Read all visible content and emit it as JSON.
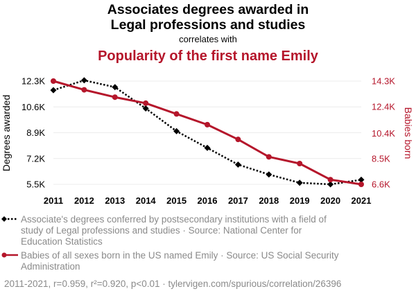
{
  "colors": {
    "series1": "#000000",
    "series2": "#b5162b",
    "grid": "#ececec",
    "muted": "#8a8a8a"
  },
  "header": {
    "title_line1": "Associates degrees awarded in",
    "title_line2": "Legal professions and studies",
    "connector": "correlates with",
    "title_second": "Popularity of the first name Emily"
  },
  "chart_data": {
    "type": "line",
    "x": [
      2011,
      2012,
      2013,
      2014,
      2015,
      2016,
      2017,
      2018,
      2019,
      2020,
      2021
    ],
    "x_tick_labels": [
      "2011",
      "2012",
      "2013",
      "2014",
      "2015",
      "2016",
      "2017",
      "2018",
      "2019",
      "2020",
      "2021"
    ],
    "y_left": {
      "label": "Degrees awarded",
      "ticks": [
        5500,
        7200,
        8900,
        10600,
        12300
      ],
      "tick_labels": [
        "5.5K",
        "7.2K",
        "8.9K",
        "10.6K",
        "12.3K"
      ],
      "range": [
        5500,
        12300
      ]
    },
    "y_right": {
      "label": "Babies born",
      "ticks": [
        6600,
        8500,
        10400,
        12400,
        14300
      ],
      "tick_labels": [
        "6.6K",
        "8.5K",
        "10.4K",
        "12.4K",
        "14.3K"
      ],
      "range": [
        6600,
        14300
      ]
    },
    "series": [
      {
        "axis": "left",
        "marker": "diamond",
        "line_style": "dotted",
        "values": [
          11700,
          12350,
          11900,
          10500,
          9000,
          7900,
          6800,
          6150,
          5600,
          5500,
          5800
        ]
      },
      {
        "axis": "right",
        "marker": "circle",
        "line_style": "solid",
        "values": [
          14300,
          13650,
          13100,
          12650,
          11850,
          11050,
          9950,
          8650,
          8150,
          6950,
          6600
        ]
      }
    ],
    "grid": true,
    "legend_position": "bottom"
  },
  "legend": {
    "series1_lines": [
      "Associate's degrees conferred by postsecondary institutions with a field of",
      "study of Legal professions and studies · Source: National Center for",
      "Education Statistics"
    ],
    "series2_lines": [
      "Babies of all sexes born in the US named Emily · Source: US Social Security",
      "Administration"
    ]
  },
  "footnote": "2011-2021, r=0.959, r²=0.920, p<0.01 · tylervigen.com/spurious/correlation/26396"
}
